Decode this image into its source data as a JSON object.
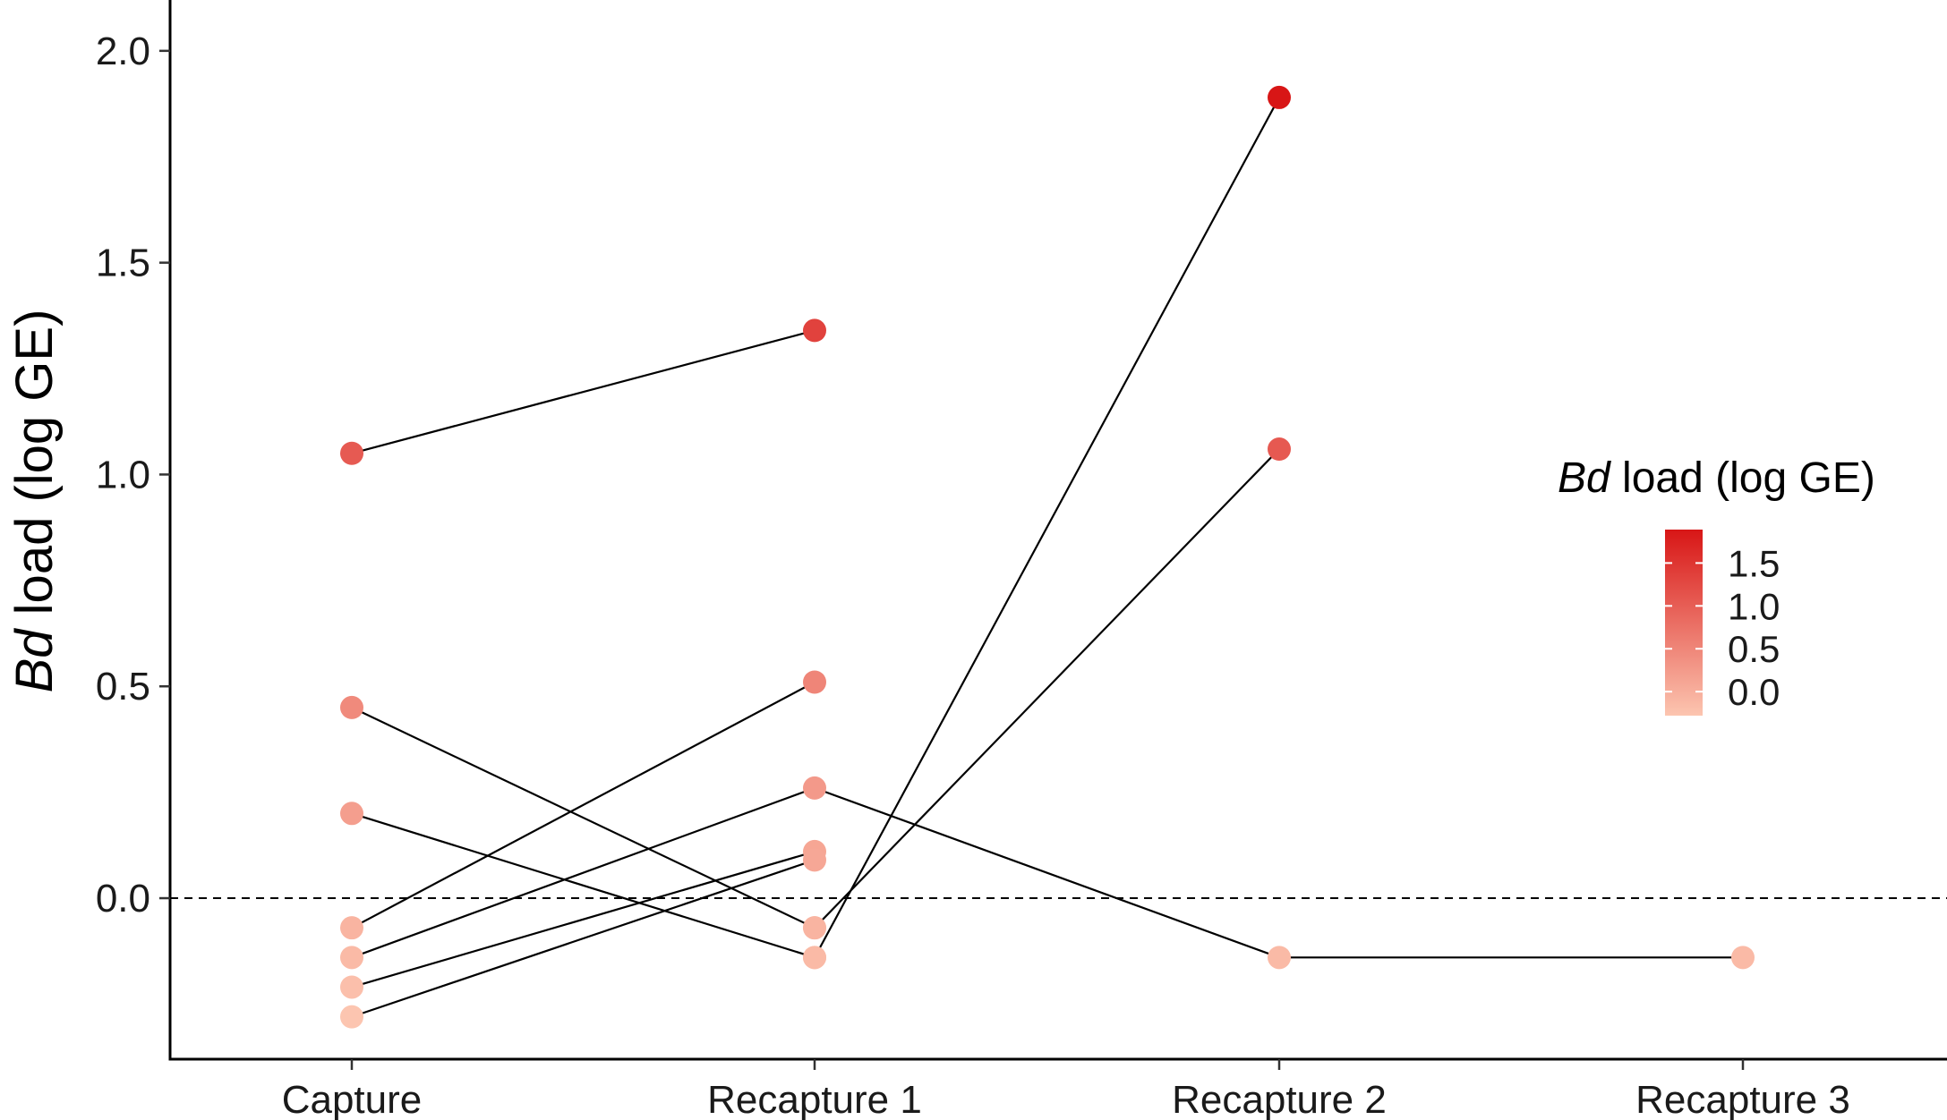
{
  "chart_data": {
    "type": "scatter",
    "title": "",
    "xlabel": "",
    "ylabel": {
      "italic": "Bd",
      "rest": " load (log GE)"
    },
    "categories": [
      "Capture",
      "Recapture 1",
      "Recapture 2",
      "Recapture 3"
    ],
    "ylim": [
      -0.38,
      2.12
    ],
    "yticks": [
      "0.0",
      "0.5",
      "1.0",
      "1.5",
      "2.0"
    ],
    "reference_line": {
      "y": 0.0,
      "style": "dashed"
    },
    "grid": false,
    "individuals": [
      {
        "points": [
          [
            0,
            1.05
          ],
          [
            1,
            1.34
          ]
        ]
      },
      {
        "points": [
          [
            0,
            0.45
          ],
          [
            1,
            -0.07
          ]
        ]
      },
      {
        "points": [
          [
            0,
            0.2
          ],
          [
            1,
            -0.14
          ]
        ]
      },
      {
        "points": [
          [
            0,
            -0.07
          ],
          [
            1,
            0.51
          ]
        ]
      },
      {
        "points": [
          [
            0,
            -0.14
          ],
          [
            1,
            0.26
          ],
          [
            2,
            -0.14
          ],
          [
            3,
            -0.14
          ]
        ]
      },
      {
        "points": [
          [
            0,
            -0.21
          ],
          [
            1,
            0.11
          ]
        ]
      },
      {
        "points": [
          [
            0,
            -0.28
          ],
          [
            1,
            0.09
          ]
        ]
      },
      {
        "points": [
          [
            1,
            -0.14
          ],
          [
            2,
            1.89
          ]
        ]
      },
      {
        "points": [
          [
            1,
            -0.07
          ],
          [
            2,
            1.06
          ]
        ]
      }
    ],
    "color_scale": {
      "title": {
        "italic": "Bd",
        "rest": " load (log GE)"
      },
      "low_color": "#fcc5b0",
      "high_color": "#d81616",
      "domain": [
        -0.28,
        1.89
      ],
      "ticks": [
        "0.0",
        "0.5",
        "1.0",
        "1.5"
      ],
      "placement": "right"
    }
  }
}
